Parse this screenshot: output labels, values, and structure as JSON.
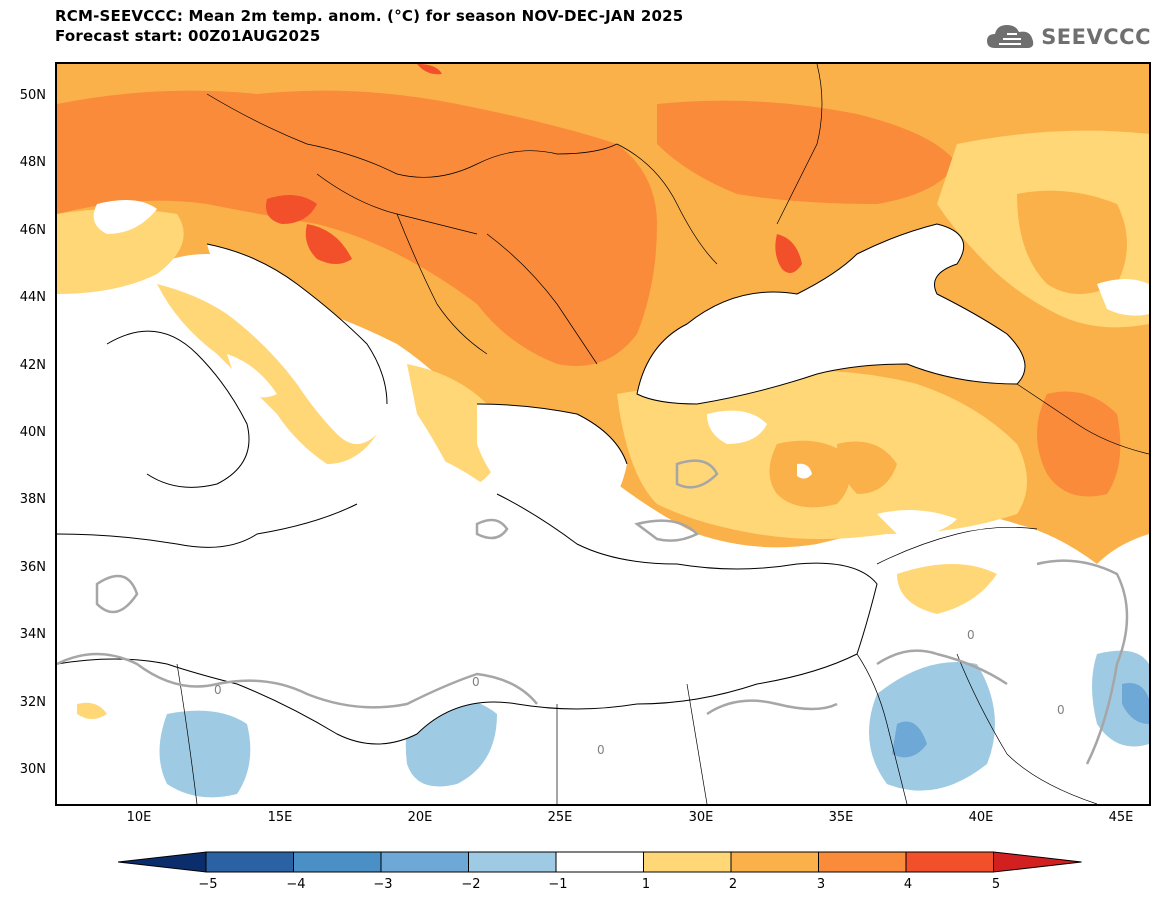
{
  "title": {
    "line1": "RCM-SEEVCCC: Mean 2m temp. anom. (°C) for season NOV-DEC-JAN 2025",
    "line2": "Forecast start: 00Z01AUG2025"
  },
  "logo": {
    "text": "SEEVCCC",
    "icon": "cloud-icon"
  },
  "map": {
    "lat_ticks": [
      "50N",
      "48N",
      "46N",
      "44N",
      "42N",
      "40N",
      "38N",
      "36N",
      "34N",
      "32N",
      "30N"
    ],
    "lon_ticks": [
      "10E",
      "15E",
      "20E",
      "25E",
      "30E",
      "35E",
      "40E",
      "45E"
    ],
    "contour_labels": [
      "0",
      "0",
      "0",
      "0",
      "0"
    ]
  },
  "colorbar": {
    "labels": [
      "−5",
      "−4",
      "−3",
      "−2",
      "−1",
      "1",
      "2",
      "3",
      "4",
      "5"
    ],
    "colors": [
      "#0b2d6b",
      "#2a62a3",
      "#4a8fc6",
      "#6ea8d6",
      "#9ecbe3",
      "#ffffff",
      "#ffd777",
      "#fbb14a",
      "#f98b3a",
      "#f2502b",
      "#d21f1f"
    ]
  },
  "legend_colors": {
    "orange_light": "#ffd777",
    "orange": "#fbb14a",
    "orange_dark": "#f98b3a",
    "red": "#f2502b",
    "deep_red": "#d21f1f",
    "blue_light": "#9ecbe3",
    "blue": "#6ea8d6",
    "contour": "#a6a6a6"
  }
}
